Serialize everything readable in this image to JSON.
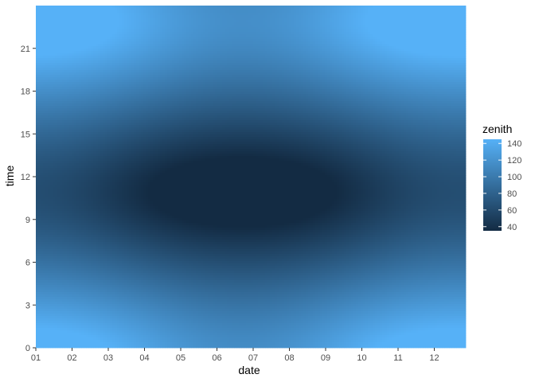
{
  "chart_data": {
    "type": "heatmap",
    "title": "",
    "xlabel": "date",
    "ylabel": "time",
    "x_ticks": [
      "01",
      "02",
      "03",
      "04",
      "05",
      "06",
      "07",
      "08",
      "09",
      "10",
      "11",
      "12"
    ],
    "y_ticks": [
      "0",
      "3",
      "6",
      "9",
      "12",
      "15",
      "18",
      "21"
    ],
    "xlim": [
      "01",
      "12"
    ],
    "ylim": [
      0,
      24
    ],
    "fill_variable": "zenith",
    "legend": {
      "title": "zenith",
      "breaks": [
        "40",
        "60",
        "80",
        "100",
        "120",
        "140"
      ],
      "range": [
        35,
        145
      ],
      "placement": "right",
      "color_low": "#132B43",
      "color_high": "#56B1F7"
    },
    "grid": false,
    "pattern": {
      "description_of_values": "zenith minimum at date 07, time ~11",
      "min_value": 35,
      "max_value": 145,
      "min_at": {
        "date": "07",
        "time": 11
      }
    }
  }
}
